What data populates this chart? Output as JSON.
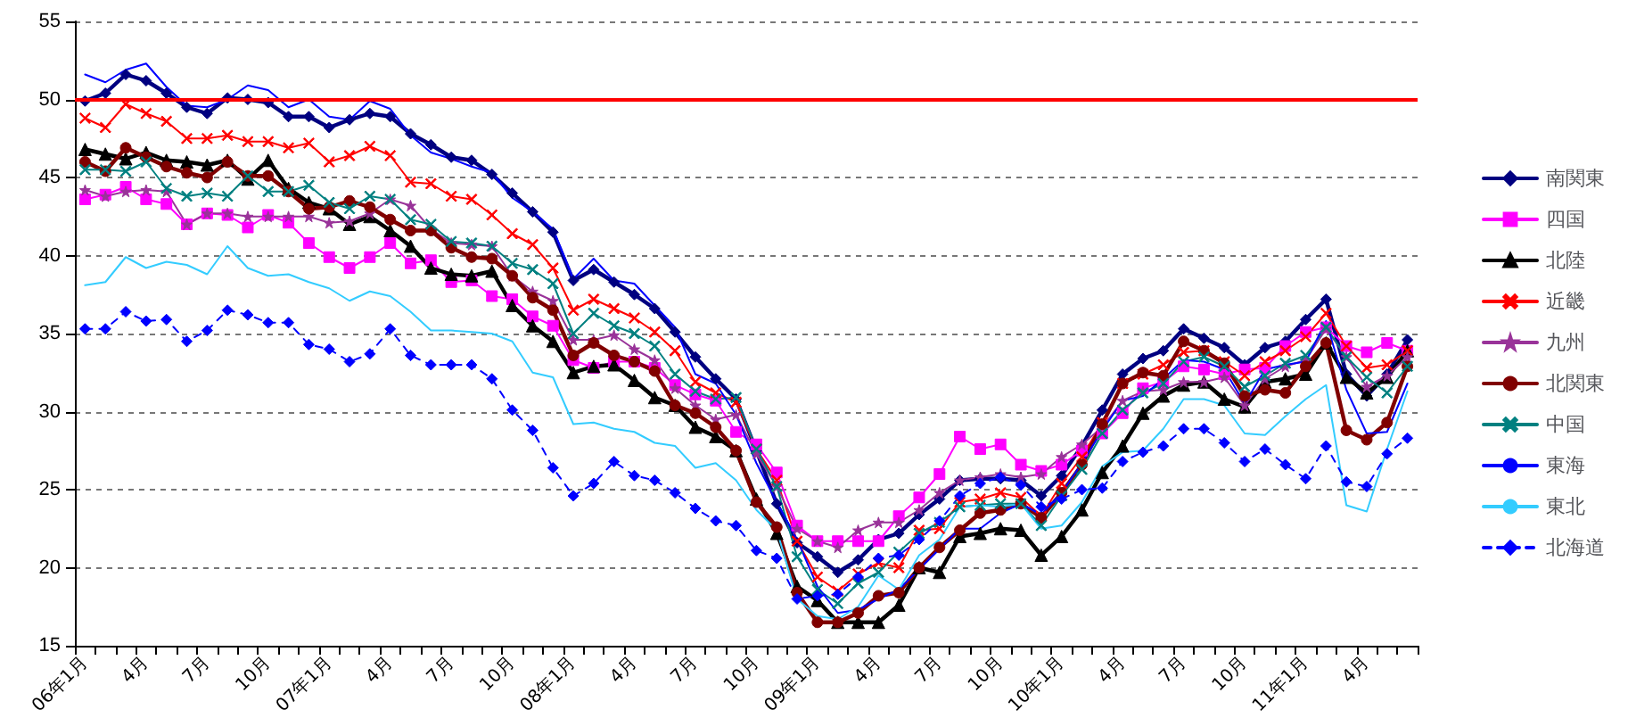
{
  "chart_data": {
    "type": "line",
    "categories": [
      "06年1月",
      null,
      null,
      "4月",
      null,
      null,
      "7月",
      null,
      null,
      "10月",
      null,
      null,
      "07年1月",
      null,
      null,
      "4月",
      null,
      null,
      "7月",
      null,
      null,
      "10月",
      null,
      null,
      "08年1月",
      null,
      null,
      "4月",
      null,
      null,
      "7月",
      null,
      null,
      "10月",
      null,
      null,
      "09年1月",
      null,
      null,
      "4月",
      null,
      null,
      "7月",
      null,
      null,
      "10月",
      null,
      null,
      "10年1月",
      null,
      null,
      "4月",
      null,
      null,
      "7月",
      null,
      null,
      "10月",
      null,
      null,
      "11年1月",
      null,
      null,
      "4月",
      null,
      null
    ],
    "ylim": [
      15,
      55
    ],
    "yticks": [
      15,
      20,
      25,
      30,
      35,
      40,
      45,
      50,
      55
    ],
    "grid": "y",
    "legend": "right",
    "ref_lines": [
      {
        "axis": "y",
        "value": 50,
        "color": "#ff0000",
        "line_style": "solid"
      }
    ],
    "series": [
      {
        "name": "南関東",
        "color": "#000080",
        "marker": "diamond",
        "line_style": "solid",
        "values": [
          49.9,
          50.4,
          51.6,
          51.2,
          50.4,
          49.5,
          49.1,
          50.1,
          50.0,
          49.8,
          48.9,
          48.9,
          48.2,
          48.7,
          49.1,
          48.9,
          47.8,
          47.1,
          46.3,
          46.1,
          45.2,
          44.0,
          42.8,
          41.5,
          38.4,
          39.1,
          38.3,
          37.5,
          36.6,
          35.1,
          33.5,
          32.1,
          30.8,
          27.5,
          24.1,
          21.6,
          20.7,
          19.7,
          20.5,
          21.8,
          22.2,
          23.4,
          24.4,
          25.6,
          25.7,
          25.7,
          25.6,
          24.6,
          25.9,
          27.8,
          30.1,
          32.4,
          33.4,
          33.9,
          35.3,
          34.7,
          34.1,
          33.0,
          34.1,
          34.5,
          35.9,
          37.2,
          32.4,
          31.0,
          32.4,
          34.6
        ]
      },
      {
        "name": "四国",
        "color": "#ff00ff",
        "marker": "square",
        "line_style": "solid",
        "values": [
          43.6,
          43.9,
          44.4,
          43.6,
          43.3,
          42.0,
          42.7,
          42.6,
          41.8,
          42.6,
          42.1,
          40.8,
          39.9,
          39.2,
          39.9,
          40.8,
          39.5,
          39.7,
          38.3,
          38.4,
          37.4,
          37.2,
          36.1,
          35.5,
          33.3,
          32.8,
          33.2,
          33.2,
          32.8,
          31.7,
          31.1,
          30.7,
          28.7,
          27.9,
          26.1,
          22.7,
          21.7,
          21.7,
          21.7,
          21.7,
          23.3,
          24.5,
          26.0,
          28.4,
          27.6,
          27.9,
          26.6,
          26.2,
          26.6,
          27.5,
          28.6,
          29.9,
          31.5,
          31.9,
          32.9,
          32.7,
          32.4,
          32.7,
          32.8,
          34.2,
          35.1,
          35.4,
          34.2,
          33.8,
          34.4,
          33.9
        ]
      },
      {
        "name": "北陸",
        "color": "#000000",
        "marker": "triangle",
        "line_style": "solid",
        "values": [
          46.8,
          46.5,
          46.2,
          46.6,
          46.1,
          46.0,
          45.8,
          46.1,
          44.9,
          46.1,
          44.3,
          43.4,
          43.0,
          42.0,
          42.5,
          41.6,
          40.6,
          39.2,
          38.8,
          38.7,
          39.0,
          36.8,
          35.5,
          34.5,
          32.5,
          32.9,
          33.0,
          32.0,
          30.9,
          30.4,
          29.0,
          28.4,
          27.5,
          24.4,
          22.2,
          18.8,
          17.9,
          16.5,
          16.5,
          16.5,
          17.6,
          20.0,
          19.7,
          22.0,
          22.2,
          22.5,
          22.4,
          20.8,
          22.0,
          23.7,
          26.1,
          27.8,
          29.9,
          31.0,
          31.7,
          31.9,
          30.8,
          30.3,
          31.9,
          32.1,
          32.4,
          34.4,
          32.2,
          31.2,
          32.2,
          33.9
        ]
      },
      {
        "name": "近畿",
        "color": "#ff0000",
        "marker": "cross",
        "line_style": "solid",
        "values": [
          48.8,
          48.2,
          49.7,
          49.1,
          48.6,
          47.5,
          47.5,
          47.7,
          47.3,
          47.3,
          46.9,
          47.2,
          46.0,
          46.4,
          47.0,
          46.4,
          44.7,
          44.6,
          43.8,
          43.6,
          42.6,
          41.4,
          40.7,
          39.2,
          36.5,
          37.2,
          36.6,
          36.0,
          35.1,
          33.9,
          31.9,
          31.2,
          30.6,
          27.6,
          25.6,
          21.7,
          19.4,
          18.5,
          19.6,
          20.3,
          20.0,
          22.4,
          22.5,
          24.2,
          24.4,
          24.8,
          24.5,
          23.3,
          25.4,
          27.1,
          29.3,
          31.8,
          32.4,
          33.0,
          33.8,
          33.9,
          33.2,
          32.3,
          33.2,
          33.9,
          34.8,
          36.3,
          34.2,
          32.8,
          33.0,
          33.9
        ]
      },
      {
        "name": "九州",
        "color": "#993399",
        "marker": "star",
        "line_style": "solid",
        "values": [
          44.2,
          43.8,
          44.1,
          44.2,
          44.1,
          42.0,
          42.7,
          42.7,
          42.5,
          42.5,
          42.5,
          42.5,
          42.1,
          42.2,
          42.7,
          43.6,
          43.2,
          41.7,
          40.8,
          40.7,
          40.6,
          38.7,
          37.7,
          37.1,
          34.6,
          34.6,
          34.9,
          34.0,
          33.3,
          31.5,
          30.4,
          29.5,
          29.8,
          27.3,
          25.2,
          22.5,
          21.7,
          21.3,
          22.4,
          22.9,
          22.9,
          23.7,
          24.8,
          25.6,
          25.8,
          26.0,
          25.8,
          26.0,
          27.1,
          27.9,
          29.0,
          30.7,
          31.3,
          31.4,
          31.9,
          31.9,
          32.2,
          30.4,
          32.1,
          32.9,
          33.3,
          35.3,
          33.5,
          31.6,
          32.3,
          33.5
        ]
      },
      {
        "name": "北関東",
        "color": "#800000",
        "marker": "circle",
        "line_style": "solid",
        "values": [
          46.0,
          45.4,
          46.9,
          46.3,
          45.7,
          45.3,
          45.0,
          46.0,
          45.1,
          45.1,
          44.1,
          43.0,
          43.1,
          43.5,
          43.1,
          42.3,
          41.6,
          41.6,
          40.5,
          39.9,
          39.8,
          38.7,
          37.3,
          36.5,
          33.6,
          34.4,
          33.6,
          33.2,
          32.6,
          30.4,
          29.9,
          29.0,
          27.5,
          24.2,
          22.6,
          18.4,
          16.5,
          16.5,
          17.1,
          18.2,
          18.4,
          20.0,
          21.3,
          22.4,
          23.5,
          23.7,
          24.1,
          23.2,
          24.8,
          26.6,
          29.2,
          31.8,
          32.5,
          32.3,
          34.5,
          33.9,
          33.1,
          31.0,
          31.4,
          31.2,
          32.9,
          34.4,
          28.8,
          28.2,
          29.3,
          32.9
        ]
      },
      {
        "name": "中国",
        "color": "#008080",
        "marker": "cross",
        "line_style": "solid",
        "values": [
          45.5,
          45.5,
          45.4,
          46.0,
          44.3,
          43.8,
          44.0,
          43.8,
          45.1,
          44.1,
          44.1,
          44.5,
          43.4,
          43.0,
          43.8,
          43.6,
          42.3,
          42.0,
          40.9,
          40.8,
          40.6,
          39.5,
          39.1,
          38.2,
          35.0,
          36.3,
          35.5,
          35.0,
          34.2,
          32.4,
          31.3,
          30.8,
          30.9,
          27.6,
          25.2,
          20.7,
          18.6,
          17.7,
          19.0,
          19.7,
          21.0,
          22.2,
          22.9,
          23.9,
          24.0,
          24.1,
          24.1,
          22.7,
          24.6,
          26.3,
          28.6,
          30.1,
          31.2,
          31.8,
          33.2,
          33.5,
          32.9,
          31.6,
          32.3,
          33.1,
          33.6,
          35.4,
          33.5,
          32.2,
          31.2,
          32.9
        ]
      },
      {
        "name": "東海",
        "color": "#0000ff",
        "marker": "none",
        "line_style": "solid",
        "values": [
          51.6,
          51.1,
          51.9,
          52.3,
          50.8,
          49.6,
          49.5,
          50.0,
          50.9,
          50.6,
          49.5,
          50.0,
          48.9,
          48.7,
          49.9,
          49.4,
          47.7,
          46.6,
          46.2,
          45.7,
          45.3,
          43.7,
          42.8,
          41.7,
          38.5,
          39.8,
          38.4,
          38.2,
          36.8,
          35.4,
          32.4,
          31.8,
          29.8,
          26.7,
          24.2,
          21.8,
          18.8,
          17.1,
          17.3,
          18.0,
          18.6,
          19.9,
          21.2,
          22.5,
          22.5,
          23.5,
          24.1,
          23.4,
          24.8,
          26.7,
          28.8,
          30.7,
          31.0,
          32.1,
          33.3,
          33.2,
          32.7,
          30.5,
          32.7,
          33.0,
          33.2,
          35.8,
          31.4,
          28.6,
          28.7,
          31.8
        ]
      },
      {
        "name": "東北",
        "color": "#33ccff",
        "marker": "none",
        "line_style": "solid",
        "values": [
          38.1,
          38.3,
          39.9,
          39.2,
          39.6,
          39.4,
          38.8,
          40.6,
          39.2,
          38.7,
          38.8,
          38.3,
          37.9,
          37.1,
          37.7,
          37.4,
          36.4,
          35.2,
          35.2,
          35.1,
          35.0,
          34.5,
          32.5,
          32.2,
          29.2,
          29.3,
          28.9,
          28.7,
          28.0,
          27.8,
          26.4,
          26.7,
          25.6,
          23.7,
          22.4,
          18.0,
          16.9,
          16.7,
          17.5,
          19.5,
          18.6,
          20.8,
          21.8,
          23.9,
          24.0,
          23.9,
          24.1,
          22.5,
          22.7,
          24.2,
          26.5,
          27.4,
          27.5,
          28.9,
          30.8,
          30.8,
          30.4,
          28.6,
          28.5,
          29.7,
          30.8,
          31.7,
          24.0,
          23.6,
          27.6,
          31.3
        ]
      },
      {
        "name": "北海道",
        "color": "#0000ff",
        "marker": "diamond",
        "line_style": "dashed",
        "values": [
          35.3,
          35.3,
          36.4,
          35.8,
          35.9,
          34.5,
          35.2,
          36.5,
          36.2,
          35.7,
          35.7,
          34.3,
          34.0,
          33.2,
          33.7,
          35.3,
          33.6,
          33.0,
          33.0,
          33.0,
          32.1,
          30.1,
          28.8,
          26.4,
          24.6,
          25.4,
          26.8,
          25.9,
          25.6,
          24.8,
          23.8,
          23.0,
          22.7,
          21.1,
          20.6,
          18.0,
          18.2,
          18.3,
          19.4,
          20.6,
          20.8,
          21.8,
          23.0,
          24.6,
          25.4,
          25.8,
          25.3,
          23.9,
          24.4,
          25.0,
          25.1,
          26.8,
          27.4,
          27.8,
          28.9,
          28.9,
          28.0,
          26.8,
          27.6,
          26.6,
          25.7,
          27.8,
          25.5,
          25.2,
          27.3,
          28.3
        ]
      }
    ]
  }
}
